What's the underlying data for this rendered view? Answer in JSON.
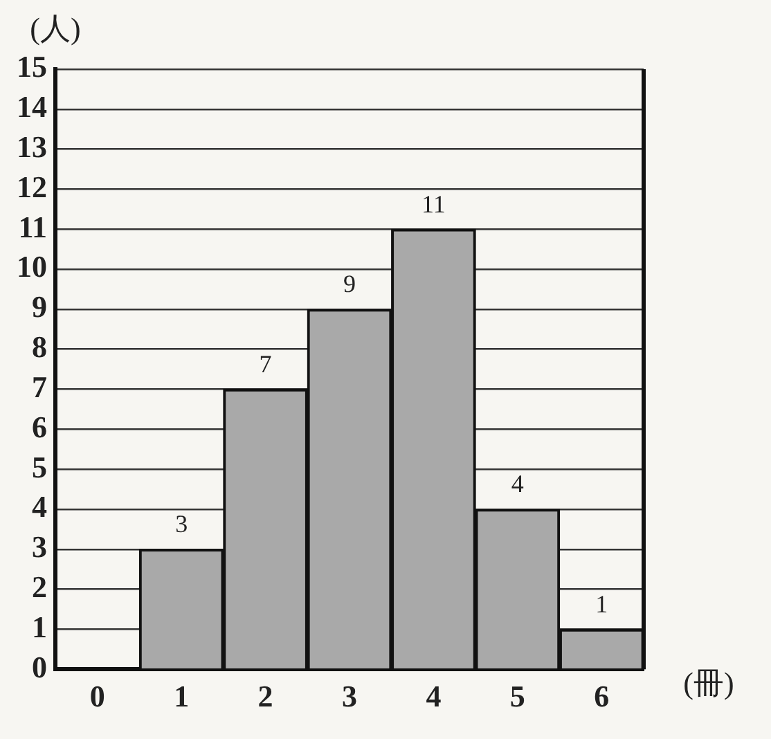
{
  "chart_data": {
    "type": "bar",
    "ylabel": "(人)",
    "xlabel": "(冊)",
    "categories": [
      "0",
      "1",
      "2",
      "3",
      "4",
      "5",
      "6"
    ],
    "values": [
      0,
      3,
      7,
      9,
      11,
      4,
      1
    ],
    "value_labels": [
      null,
      "3",
      "7",
      "9",
      "11",
      "4",
      "1"
    ],
    "color": "#a9a9a9",
    "ylim": [
      0,
      15
    ],
    "yticks": [
      0,
      1,
      2,
      3,
      4,
      5,
      6,
      7,
      8,
      9,
      10,
      11,
      12,
      13,
      14,
      15
    ],
    "grid": "y",
    "legend": false
  }
}
